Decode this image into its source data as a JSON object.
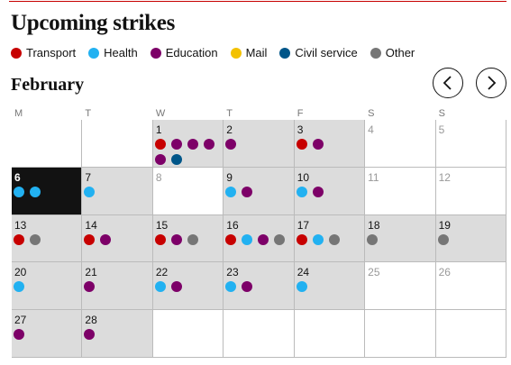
{
  "title": "Upcoming strikes",
  "legend": [
    {
      "label": "Transport",
      "color": "#c70000"
    },
    {
      "label": "Health",
      "color": "#22b1f1"
    },
    {
      "label": "Education",
      "color": "#7d0068"
    },
    {
      "label": "Mail",
      "color": "#f3c100"
    },
    {
      "label": "Civil service",
      "color": "#005689"
    },
    {
      "label": "Other",
      "color": "#767676"
    }
  ],
  "month": "February",
  "weekdays": [
    "M",
    "T",
    "W",
    "T",
    "F",
    "S",
    "S"
  ],
  "weeks": [
    [
      null,
      null,
      {
        "day": 1,
        "strikes": [
          "Transport",
          "Education",
          "Education",
          "Education",
          "Education",
          "Civil service"
        ]
      },
      {
        "day": 2,
        "strikes": [
          "Education"
        ]
      },
      {
        "day": 3,
        "strikes": [
          "Transport",
          "Education"
        ]
      },
      {
        "day": 4,
        "strikes": []
      },
      {
        "day": 5,
        "strikes": []
      }
    ],
    [
      {
        "day": 6,
        "today": true,
        "strikes": [
          "Health",
          "Health"
        ]
      },
      {
        "day": 7,
        "strikes": [
          "Health"
        ]
      },
      {
        "day": 8,
        "strikes": []
      },
      {
        "day": 9,
        "strikes": [
          "Health",
          "Education"
        ]
      },
      {
        "day": 10,
        "strikes": [
          "Health",
          "Education"
        ]
      },
      {
        "day": 11,
        "strikes": []
      },
      {
        "day": 12,
        "strikes": []
      }
    ],
    [
      {
        "day": 13,
        "strikes": [
          "Transport",
          "Other"
        ]
      },
      {
        "day": 14,
        "strikes": [
          "Transport",
          "Education"
        ]
      },
      {
        "day": 15,
        "strikes": [
          "Transport",
          "Education",
          "Other"
        ]
      },
      {
        "day": 16,
        "strikes": [
          "Transport",
          "Health",
          "Education",
          "Other"
        ]
      },
      {
        "day": 17,
        "strikes": [
          "Transport",
          "Health",
          "Other"
        ]
      },
      {
        "day": 18,
        "strikes": [
          "Other"
        ]
      },
      {
        "day": 19,
        "strikes": [
          "Other"
        ]
      }
    ],
    [
      {
        "day": 20,
        "strikes": [
          "Health"
        ]
      },
      {
        "day": 21,
        "strikes": [
          "Education"
        ]
      },
      {
        "day": 22,
        "strikes": [
          "Health",
          "Education"
        ]
      },
      {
        "day": 23,
        "strikes": [
          "Health",
          "Education"
        ]
      },
      {
        "day": 24,
        "strikes": [
          "Health"
        ]
      },
      {
        "day": 25,
        "strikes": []
      },
      {
        "day": 26,
        "strikes": []
      }
    ],
    [
      {
        "day": 27,
        "strikes": [
          "Education"
        ]
      },
      {
        "day": 28,
        "strikes": [
          "Education"
        ]
      },
      null,
      null,
      null,
      null,
      null
    ]
  ]
}
